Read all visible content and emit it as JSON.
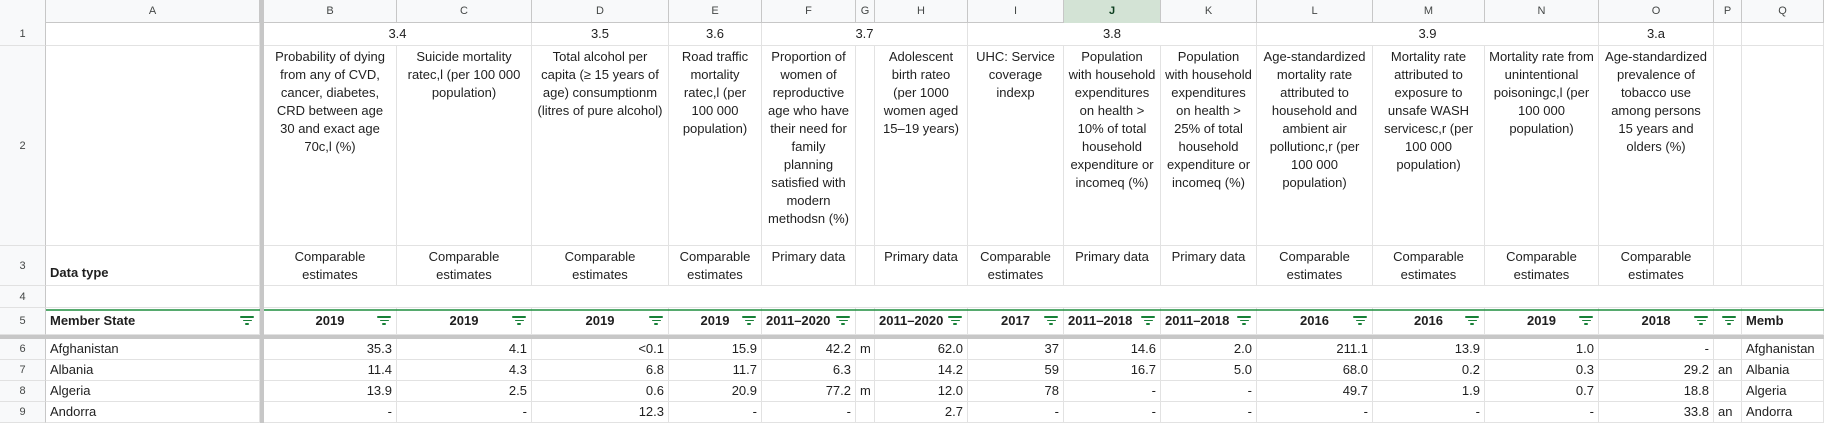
{
  "columns": [
    "A",
    "B",
    "C",
    "D",
    "E",
    "F",
    "G",
    "H",
    "I",
    "J",
    "K",
    "L",
    "M",
    "N",
    "O",
    "P",
    "Q"
  ],
  "rows": [
    "1",
    "2",
    "3",
    "4",
    "5",
    "6",
    "7",
    "8",
    "9"
  ],
  "row1": {
    "b_c": "3.4",
    "d": "3.5",
    "e": "3.6",
    "f_h": "3.7",
    "i_k": "3.8",
    "l_n": "3.9",
    "o": "3.a"
  },
  "row2": {
    "b": "Probability of dying from any of CVD, cancer, diabetes, CRD between age 30 and exact age 70c,l (%)",
    "c": "Suicide mortality ratec,l (per 100 000 population)",
    "d": "Total alcohol per capita (≥ 15 years of age) consumptionm (litres of pure alcohol)",
    "e": "Road traffic mortality ratec,l (per 100 000 population)",
    "f": "Proportion of women of reproductive age who have their need for family planning satisfied with modern methodsn (%)",
    "h": "Adolescent birth rateo (per 1000 women aged 15–19 years)",
    "i": "UHC: Service coverage indexp",
    "j": "Population with household expenditures on health > 10% of total household expenditure or incomeq (%)",
    "k": "Population with household expenditures on health > 25% of total household expenditure or incomeq (%)",
    "l": "Age-standardized mortality rate attributed to household and ambient air pollutionc,r  (per 100 000 population)",
    "m": "Mortality rate attributed to exposure to unsafe WASH servicesc,r (per 100 000 population)",
    "n": "Mortality rate from unintentional poisoningc,l (per 100 000 population)",
    "o": "Age-standardized prevalence of tobacco use among persons 15 years and olders (%)"
  },
  "row3": {
    "a": "Data type",
    "b": "Comparable estimates",
    "c": "Comparable estimates",
    "d": "Comparable estimates",
    "e": "Comparable estimates",
    "f": "Primary data",
    "h": "Primary data",
    "i": "Comparable estimates",
    "j": "Primary data",
    "k": "Primary data",
    "l": "Comparable estimates",
    "m": "Comparable estimates",
    "n": "Comparable estimates",
    "o": "Comparable estimates"
  },
  "row5": {
    "a": "Member State",
    "b": "2019",
    "c": "2019",
    "d": "2019",
    "e": "2019",
    "f": "2011–2020",
    "h": "2011–2020",
    "i": "2017",
    "j": "2011–2018",
    "k": "2011–2018",
    "l": "2016",
    "m": "2016",
    "n": "2019",
    "o": "2018",
    "q": "Memb"
  },
  "data_rows": [
    {
      "a": "Afghanistan",
      "b": "35.3",
      "c": "4.1",
      "d": "<0.1",
      "e": "15.9",
      "f": "42.2",
      "g": "m",
      "h": "62.0",
      "i": "37",
      "j": "14.6",
      "k": "2.0",
      "l": "211.1",
      "m": "13.9",
      "n": "1.0",
      "o": "-",
      "p": "",
      "q": "Afghanistan"
    },
    {
      "a": "Albania",
      "b": "11.4",
      "c": "4.3",
      "d": "6.8",
      "e": "11.7",
      "f": "6.3",
      "g": "",
      "h": "14.2",
      "i": "59",
      "j": "16.7",
      "k": "5.0",
      "l": "68.0",
      "m": "0.2",
      "n": "0.3",
      "o": "29.2",
      "p": "an",
      "q": "Albania"
    },
    {
      "a": "Algeria",
      "b": "13.9",
      "c": "2.5",
      "d": "0.6",
      "e": "20.9",
      "f": "77.2",
      "g": "m",
      "h": "12.0",
      "i": "78",
      "j": "-",
      "k": "-",
      "l": "49.7",
      "m": "1.9",
      "n": "0.7",
      "o": "18.8",
      "p": "",
      "q": "Algeria"
    },
    {
      "a": "Andorra",
      "b": "-",
      "c": "-",
      "d": "12.3",
      "e": "-",
      "f": "-",
      "g": "",
      "h": "2.7",
      "i": "-",
      "j": "-",
      "k": "-",
      "l": "-",
      "m": "-",
      "n": "-",
      "o": "33.8",
      "p": "an",
      "q": "Andorra"
    }
  ],
  "selected_column": "J",
  "colors": {
    "accent": "#188038",
    "header_bg": "#f8f9fa",
    "selected_header_bg": "#d3e3d5"
  }
}
